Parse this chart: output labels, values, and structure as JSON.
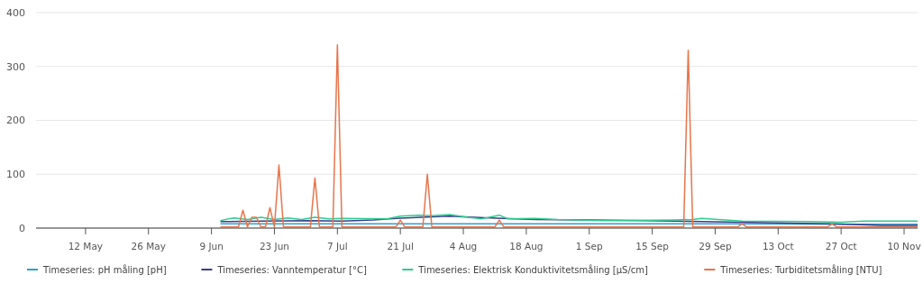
{
  "chart_data": {
    "type": "line",
    "xlim": [
      "--05-01",
      "--11-13"
    ],
    "xticks": [
      {
        "value": "--05-12",
        "label": "12 May"
      },
      {
        "value": "--05-26",
        "label": "26 May"
      },
      {
        "value": "--06-09",
        "label": "9 Jun"
      },
      {
        "value": "--06-23",
        "label": "23 Jun"
      },
      {
        "value": "--07-07",
        "label": "7 Jul"
      },
      {
        "value": "--07-21",
        "label": "21 Jul"
      },
      {
        "value": "--08-04",
        "label": "4 Aug"
      },
      {
        "value": "--08-18",
        "label": "18 Aug"
      },
      {
        "value": "--09-01",
        "label": "1 Sep"
      },
      {
        "value": "--09-15",
        "label": "15 Sep"
      },
      {
        "value": "--09-29",
        "label": "29 Sep"
      },
      {
        "value": "--10-13",
        "label": "13 Oct"
      },
      {
        "value": "--10-27",
        "label": "27 Oct"
      },
      {
        "value": "--11-10",
        "label": "10 Nov"
      }
    ],
    "ylim": [
      0,
      400
    ],
    "yticks": [
      0,
      100,
      200,
      300,
      400
    ],
    "grid": "y",
    "legend": "bottom",
    "line_style": "solid",
    "series": [
      {
        "name": "Timeseries: pH måling [pH]",
        "color": "#29a3d6",
        "x": [
          "--06-11",
          "--07-01",
          "--08-01",
          "--09-01",
          "--10-01",
          "--11-01",
          "--11-13"
        ],
        "values": [
          8,
          8,
          8,
          8,
          8,
          7,
          7
        ]
      },
      {
        "name": "Timeseries: Vanntemperatur [°C]",
        "color": "#3b3b8f",
        "x": [
          "--06-11",
          "--06-20",
          "--07-01",
          "--07-08",
          "--07-15",
          "--07-20",
          "--07-28",
          "--08-01",
          "--08-10",
          "--08-20",
          "--09-01",
          "--09-14",
          "--09-26",
          "--10-10",
          "--10-25",
          "--11-05",
          "--11-13"
        ],
        "values": [
          12,
          13,
          14,
          13,
          15,
          18,
          21,
          22,
          19,
          16,
          15,
          14,
          12,
          10,
          8,
          5,
          5
        ]
      },
      {
        "name": "Timeseries: Elektrisk Konduktivitetsmåling [µS/cm]",
        "color": "#2ecc8f",
        "x": [
          "--06-11",
          "--06-14",
          "--06-17",
          "--06-20",
          "--06-23",
          "--06-26",
          "--06-29",
          "--07-02",
          "--07-05",
          "--07-08",
          "--07-18",
          "--07-21",
          "--07-25",
          "--07-28",
          "--08-01",
          "--08-05",
          "--08-08",
          "--08-12",
          "--08-14",
          "--08-20",
          "--08-25",
          "--09-05",
          "--09-20",
          "--09-24",
          "--09-26",
          "--10-05",
          "--10-20",
          "--10-27",
          "--11-01",
          "--11-13"
        ],
        "values": [
          14,
          19,
          16,
          20,
          16,
          19,
          16,
          20,
          17,
          18,
          17,
          22,
          24,
          23,
          25,
          20,
          17,
          24,
          17,
          18,
          16,
          14,
          15,
          16,
          18,
          13,
          12,
          11,
          13,
          13
        ]
      },
      {
        "name": "Timeseries: Turbiditetsmåling [NTU]",
        "color": "#e8744a",
        "x": [
          "--06-11",
          "--06-15",
          "--06-16",
          "--06-17",
          "--06-18",
          "--06-19",
          "--06-20",
          "--06-21",
          "--06-22",
          "--06-23",
          "--06-24",
          "--06-25",
          "--07-01",
          "--07-02",
          "--07-03",
          "--07-06",
          "--07-07",
          "--07-08",
          "--07-20",
          "--07-21",
          "--07-22",
          "--07-26",
          "--07-27",
          "--07-28",
          "--08-11",
          "--08-12",
          "--08-13",
          "--09-22",
          "--09-23",
          "--09-24",
          "--10-04",
          "--10-05",
          "--10-06",
          "--10-24",
          "--10-25",
          "--10-26",
          "--11-13"
        ],
        "values": [
          2,
          2,
          33,
          2,
          20,
          20,
          2,
          2,
          38,
          2,
          117,
          2,
          2,
          93,
          2,
          2,
          340,
          2,
          2,
          15,
          2,
          2,
          100,
          2,
          2,
          15,
          2,
          2,
          330,
          2,
          2,
          8,
          2,
          2,
          8,
          2,
          2
        ]
      }
    ]
  }
}
